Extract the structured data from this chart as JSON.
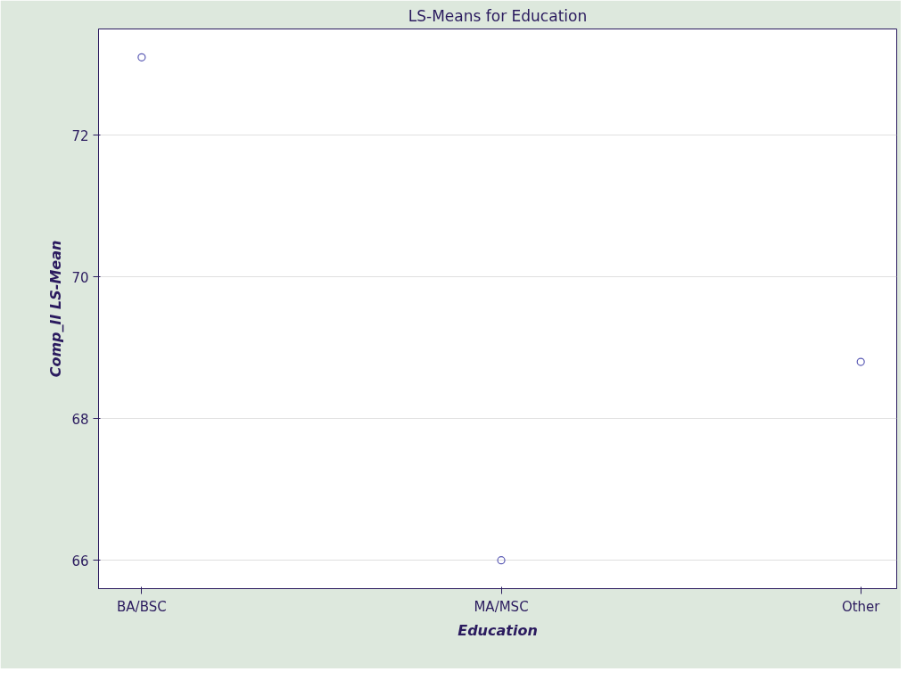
{
  "chart_data": {
    "type": "scatter",
    "title": "LS-Means for Education",
    "xlabel": "Education",
    "ylabel": "Comp_II LS-Mean",
    "categories": [
      "BA/BSC",
      "MA/MSC",
      "Other"
    ],
    "series": [
      {
        "color": "#5a5ab4",
        "values": [
          73.1,
          66.0,
          68.8
        ]
      }
    ],
    "ylim": [
      65.6,
      73.5
    ],
    "yticks": [
      66,
      68,
      70,
      72
    ],
    "grid": "y",
    "marker": "circle"
  }
}
